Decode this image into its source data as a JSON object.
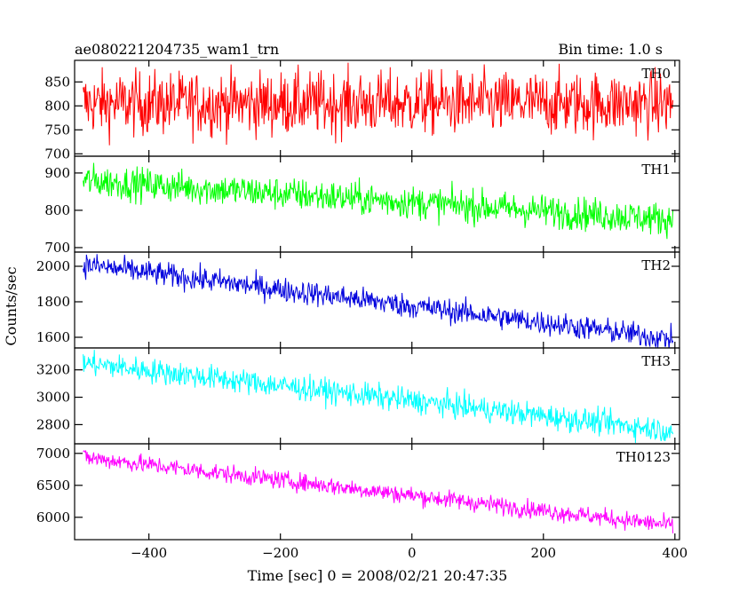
{
  "header": {
    "left_title": "ae080221204735_wam1_trn",
    "right_title": "Bin time: 1.0 s"
  },
  "chart_data": {
    "type": "line",
    "title": "ae080221204735_wam1_trn",
    "subtitle": "Bin time: 1.0 s",
    "xlabel": "Time [sec] 0 = 2008/02/21 20:47:35",
    "ylabel": "Counts/sec",
    "xlim": [
      -513,
      407
    ],
    "x_ticks": [
      -400,
      -200,
      0,
      200,
      400
    ],
    "x_range": [
      -500,
      397
    ],
    "x_step": 1,
    "grid": false,
    "legend": "none",
    "panels": [
      {
        "name": "TH0",
        "color": "#ff0000",
        "ylim": [
          695,
          895
        ],
        "y_ticks": [
          700,
          750,
          800,
          850
        ],
        "start": 805,
        "end": 805,
        "noise": 33
      },
      {
        "name": "TH1",
        "color": "#00ff00",
        "ylim": [
          688,
          945
        ],
        "y_ticks": [
          700,
          800,
          900
        ],
        "start": 880,
        "end": 775,
        "noise": 22
      },
      {
        "name": "TH2",
        "color": "#0000dd",
        "ylim": [
          1540,
          2080
        ],
        "y_ticks": [
          1600,
          1800,
          2000
        ],
        "start": 2010,
        "end": 1590,
        "noise": 34
      },
      {
        "name": "TH3",
        "color": "#00ffff",
        "ylim": [
          2660,
          3360
        ],
        "y_ticks": [
          2800,
          3000,
          3200
        ],
        "start": 3250,
        "end": 2755,
        "noise": 45
      },
      {
        "name": "TH0123",
        "color": "#ff00ff",
        "ylim": [
          5650,
          7150
        ],
        "y_ticks": [
          6000,
          6500,
          7000
        ],
        "start": 6940,
        "end": 5870,
        "noise": 70
      }
    ]
  }
}
